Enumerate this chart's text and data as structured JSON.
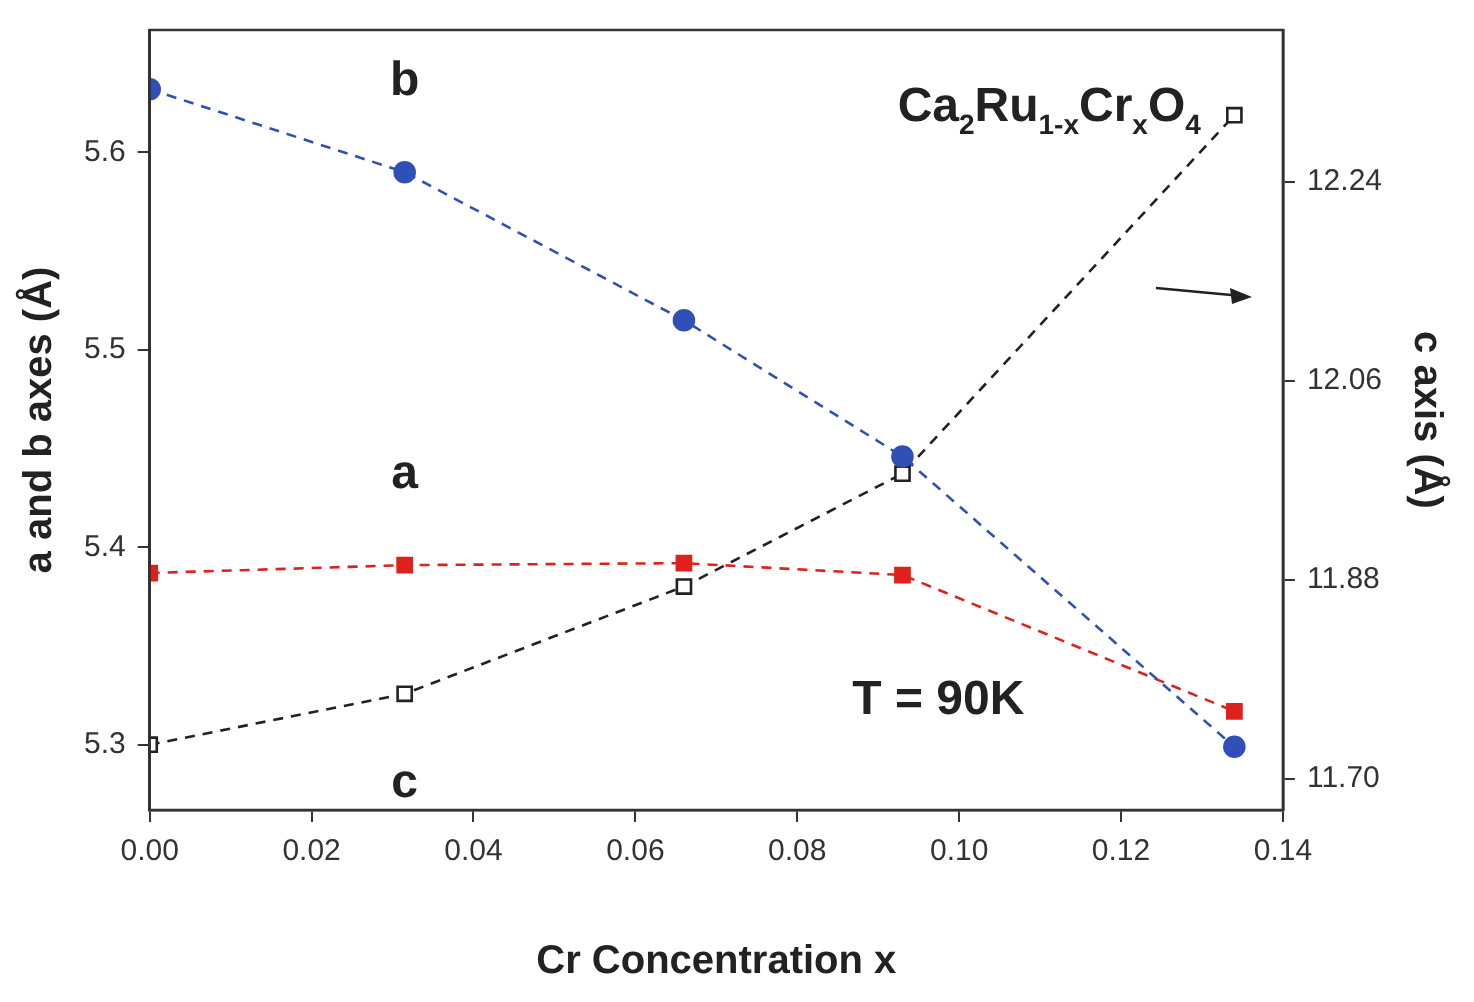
{
  "chart_data": {
    "type": "line",
    "xlabel": "Cr Concentration x",
    "ylabel": "a and b axes (Å)",
    "y2label": "c axis (Å)",
    "x": [
      0,
      0.0315,
      0.066,
      0.093,
      0.134
    ],
    "series": [
      {
        "name": "b",
        "color": "#3050b8",
        "values": [
          5.632,
          5.59,
          5.515,
          5.446,
          5.299
        ],
        "marker": "circle"
      },
      {
        "name": "a",
        "color": "#e0201c",
        "values": [
          5.387,
          5.391,
          5.392,
          5.386,
          5.317
        ],
        "marker": "square"
      },
      {
        "name": "c",
        "color": "#222222",
        "values": [
          11.731,
          11.777,
          11.874,
          11.976,
          12.3
        ],
        "marker": "square",
        "axis": "y2"
      }
    ],
    "xlim": [
      0,
      0.14
    ],
    "xticks": [
      {
        "value": 0,
        "label": "0.00"
      },
      {
        "value": 0.02,
        "label": "0.02"
      },
      {
        "value": 0.04,
        "label": "0.04"
      },
      {
        "value": 0.06,
        "label": "0.06"
      },
      {
        "value": 0.08,
        "label": "0.08"
      },
      {
        "value": 0.1,
        "label": "0.10"
      },
      {
        "value": 0.12,
        "label": "0.12"
      },
      {
        "value": 0.14,
        "label": "0.14"
      }
    ],
    "ylim": [
      5.267,
      5.662
    ],
    "yticks": [
      5.3,
      5.4,
      5.5,
      5.6
    ],
    "y2lim": [
      11.672,
      12.377
    ],
    "y2ticks": [
      {
        "value": 11.7,
        "label": "11.70"
      },
      11.88,
      12.06,
      12.24
    ],
    "line_style": "dashed",
    "grid": false,
    "legend": false,
    "annotations": [
      "Ca$_{2}$Ru$_{1-x}$Cr$_{x}$O$_{4}$",
      "T = 90K"
    ]
  }
}
